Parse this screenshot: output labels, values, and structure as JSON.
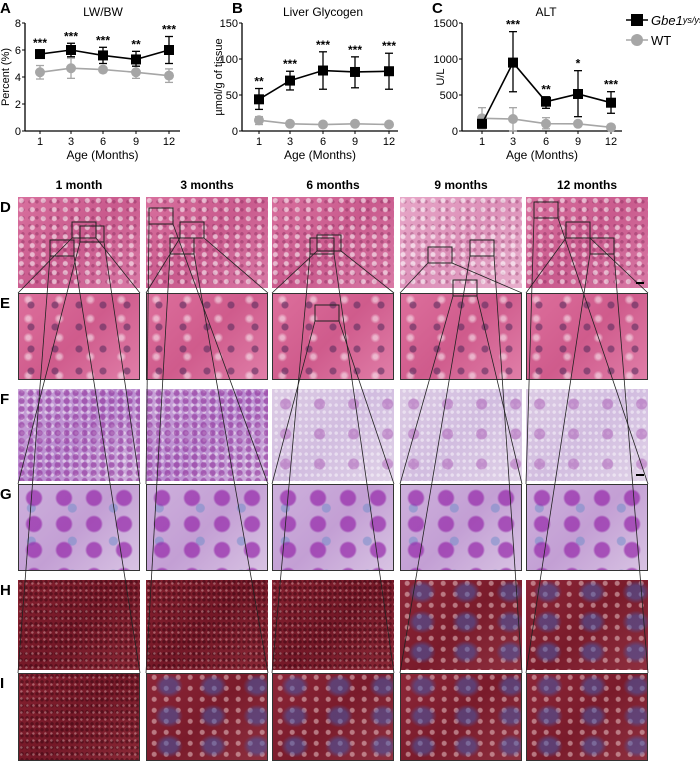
{
  "panels": {
    "A": "A",
    "B": "B",
    "C": "C",
    "D": "D",
    "E": "E",
    "F": "F",
    "G": "G",
    "H": "H",
    "I": "I"
  },
  "legend": {
    "mutant": {
      "name": "Gbe1",
      "superscript": "ys/ys",
      "color": "#000000",
      "marker": "square"
    },
    "wt": {
      "name": "WT",
      "color": "#a6a6a6",
      "marker": "circle"
    }
  },
  "columns": [
    "1 month",
    "3 months",
    "6 months",
    "9 months",
    "12 months"
  ],
  "rows": [
    {
      "label": "D",
      "stain": "H&E",
      "view": "overview"
    },
    {
      "label": "E",
      "stain": "H&E",
      "view": "inset"
    },
    {
      "label": "F",
      "stain": "PAS",
      "view": "overview"
    },
    {
      "label": "G",
      "stain": "PAS",
      "view": "inset"
    },
    {
      "label": "H",
      "stain": "Trichrome",
      "view": "overview"
    },
    {
      "label": "I",
      "stain": "Trichrome",
      "view": "inset"
    }
  ],
  "chart_data": [
    {
      "type": "line",
      "title": "LW/BW",
      "xlabel": "Age (Months)",
      "ylabel": "Percent (%)",
      "categories": [
        "1",
        "3",
        "6",
        "9",
        "12"
      ],
      "ylim": [
        0,
        8
      ],
      "yticks": [
        "0",
        "2",
        "4",
        "6",
        "8"
      ],
      "grid": false,
      "series": [
        {
          "name": "Gbe1ys/ys",
          "values": [
            5.7,
            6.0,
            5.6,
            5.3,
            6.0
          ],
          "err_low": [
            5.5,
            5.5,
            5.0,
            4.8,
            5.0
          ],
          "err_high": [
            6.0,
            6.5,
            6.2,
            5.9,
            7.0
          ],
          "color": "#000000"
        },
        {
          "name": "WT",
          "values": [
            4.35,
            4.65,
            4.55,
            4.35,
            4.1
          ],
          "err_low": [
            3.85,
            3.9,
            4.55,
            3.9,
            3.6
          ],
          "err_high": [
            4.85,
            5.4,
            4.55,
            4.8,
            4.6
          ],
          "color": "#a6a6a6"
        }
      ],
      "significance": [
        "***",
        "***",
        "***",
        "**",
        "***"
      ]
    },
    {
      "type": "line",
      "title": "Liver Glycogen",
      "xlabel": "Age  (Months)",
      "ylabel": "µmol/g of tissue",
      "categories": [
        "1",
        "3",
        "6",
        "9",
        "12"
      ],
      "ylim": [
        0,
        150
      ],
      "yticks": [
        "0",
        "50",
        "100",
        "150"
      ],
      "grid": false,
      "series": [
        {
          "name": "Gbe1ys/ys",
          "values": [
            44,
            70,
            84,
            82,
            83
          ],
          "err_low": [
            30,
            57,
            58,
            60,
            58
          ],
          "err_high": [
            59,
            83,
            110,
            103,
            108
          ],
          "color": "#000000"
        },
        {
          "name": "WT",
          "values": [
            15,
            10,
            9,
            10,
            9
          ],
          "err_low": [
            9,
            10,
            9,
            10,
            9
          ],
          "err_high": [
            20,
            10,
            9,
            10,
            9
          ],
          "color": "#a6a6a6"
        }
      ],
      "significance": [
        "**",
        "***",
        "***",
        "***",
        "***"
      ]
    },
    {
      "type": "line",
      "title": "ALT",
      "xlabel": "Age (Months)",
      "ylabel": "U/L",
      "categories": [
        "1",
        "3",
        "6",
        "9",
        "12"
      ],
      "ylim": [
        0,
        1500
      ],
      "yticks": [
        "0",
        "500",
        "1000",
        "1500"
      ],
      "grid": false,
      "legend_position": "right",
      "series": [
        {
          "name": "Gbe1ys/ys",
          "values": [
            100,
            950,
            407,
            514,
            393
          ],
          "err_low": [
            100,
            545,
            315,
            199,
            246
          ],
          "err_high": [
            100,
            1380,
            476,
            838,
            546
          ],
          "color": "#000000"
        },
        {
          "name": "WT",
          "values": [
            176,
            167,
            101,
            100,
            51
          ],
          "err_low": [
            30,
            0,
            30,
            100,
            30
          ],
          "err_high": [
            324,
            324,
            185,
            100,
            80
          ],
          "color": "#a6a6a6"
        }
      ],
      "significance": [
        "",
        "***",
        "**",
        "*",
        "***"
      ]
    }
  ]
}
